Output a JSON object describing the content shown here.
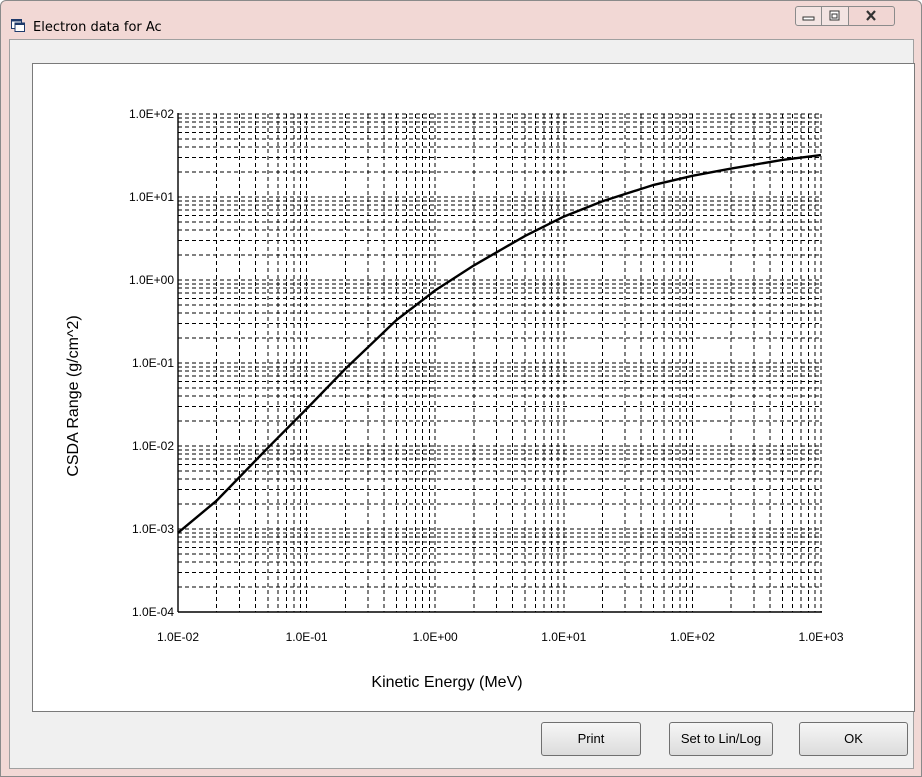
{
  "window": {
    "title": "Electron data for Ac",
    "controls": [
      "minimize-icon",
      "maximize-icon",
      "close-icon"
    ]
  },
  "buttons": {
    "print": "Print",
    "set_lin_log": "Set to Lin/Log",
    "ok": "OK"
  },
  "chart_data": {
    "type": "line",
    "xlabel": "Kinetic Energy (MeV)",
    "ylabel": "CSDA Range (g/cm^2)",
    "xscale": "log",
    "yscale": "log",
    "xlim": [
      0.01,
      1000
    ],
    "ylim": [
      0.0001,
      100
    ],
    "xticks": [
      "1.0E-02",
      "1.0E-01",
      "1.0E+00",
      "1.0E+01",
      "1.0E+02",
      "1.0E+03"
    ],
    "yticks": [
      "1.0E-04",
      "1.0E-03",
      "1.0E-02",
      "1.0E-01",
      "1.0E+00",
      "1.0E+01",
      "1.0E+02"
    ],
    "grid": true,
    "series": [
      {
        "x": [
          0.01,
          0.02,
          0.05,
          0.1,
          0.2,
          0.5,
          1,
          2,
          5,
          10,
          20,
          50,
          100,
          200,
          500,
          1000
        ],
        "y": [
          0.0009,
          0.0022,
          0.0095,
          0.028,
          0.085,
          0.33,
          0.75,
          1.5,
          3.4,
          5.8,
          8.9,
          14,
          18,
          22,
          28,
          32
        ]
      }
    ]
  }
}
